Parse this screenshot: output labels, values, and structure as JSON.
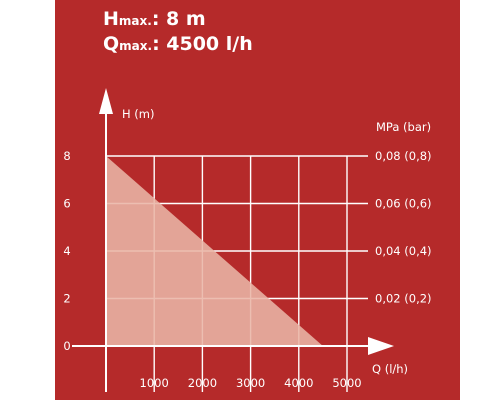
{
  "header": {
    "hmax": {
      "symbol": "H",
      "sub": "max.",
      "value": ": 8 m"
    },
    "qmax": {
      "symbol": "Q",
      "sub": "max.",
      "value": ": 4500 l/h"
    }
  },
  "chart_data": {
    "type": "area",
    "xlabel": "Q (l/h)",
    "ylabel": "H (m)",
    "y2label": "MPa (bar)",
    "x_ticks": [
      1000,
      2000,
      3000,
      4000,
      5000
    ],
    "y_ticks": [
      0,
      2,
      4,
      6,
      8
    ],
    "y2_ticks": [
      "0,02 (0,2)",
      "0,04 (0,4)",
      "0,06 (0,6)",
      "0,08 (0,8)"
    ],
    "xlim": [
      0,
      5000
    ],
    "ylim": [
      0,
      8
    ],
    "grid": true,
    "series": [
      {
        "x": [
          0,
          4500
        ],
        "y": [
          8,
          0
        ]
      }
    ],
    "colors": {
      "background": "#b52a2a",
      "fill": "#e9b5a6",
      "grid": "#ffffff"
    }
  }
}
